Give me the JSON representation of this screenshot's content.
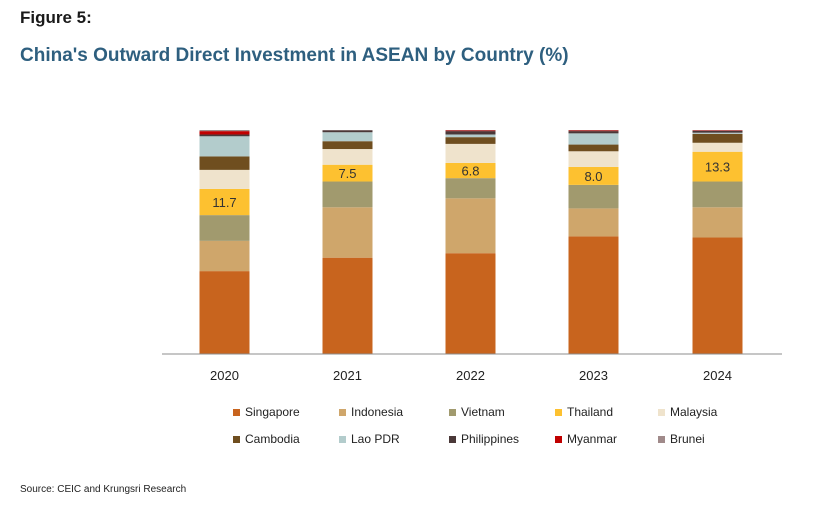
{
  "figure_label": "Figure 5:",
  "title": "China's Outward Direct Investment in ASEAN by Country (%)",
  "source": "Source: CEIC and Krungsri Research",
  "chart_data": {
    "type": "bar",
    "stacked": true,
    "categories": [
      "2020",
      "2021",
      "2022",
      "2023",
      "2024"
    ],
    "ylim": [
      0,
      100
    ],
    "grid": false,
    "legend_position": "bottom",
    "series": [
      {
        "name": "Singapore",
        "color": "#c8641e",
        "values": [
          37.0,
          43.0,
          45.0,
          52.5,
          52.0
        ]
      },
      {
        "name": "Indonesia",
        "color": "#cfa66b",
        "values": [
          13.5,
          22.5,
          24.5,
          12.5,
          13.5
        ]
      },
      {
        "name": "Vietnam",
        "color": "#a19a6e",
        "values": [
          11.5,
          11.5,
          9.0,
          10.5,
          11.5
        ]
      },
      {
        "name": "Thailand",
        "color": "#fdc130",
        "values": [
          11.7,
          7.5,
          6.8,
          8.0,
          13.3
        ]
      },
      {
        "name": "Malaysia",
        "color": "#efe3cc",
        "values": [
          8.5,
          7.0,
          8.5,
          7.0,
          4.0
        ]
      },
      {
        "name": "Cambodia",
        "color": "#6f4e1f",
        "values": [
          6.0,
          3.5,
          3.0,
          3.0,
          4.0
        ]
      },
      {
        "name": "Lao PDR",
        "color": "#b3cccc",
        "values": [
          9.0,
          4.0,
          1.2,
          5.0,
          0.5
        ]
      },
      {
        "name": "Philippines",
        "color": "#4a3838",
        "values": [
          0.8,
          0.8,
          1.5,
          1.0,
          0.8
        ]
      },
      {
        "name": "Myanmar",
        "color": "#c00000",
        "values": [
          1.5,
          0.0,
          0.3,
          0.3,
          0.2
        ]
      },
      {
        "name": "Brunei",
        "color": "#a08a8a",
        "values": [
          0.5,
          0.2,
          0.2,
          0.2,
          0.2
        ]
      }
    ],
    "data_labels": {
      "series": "Thailand",
      "values": [
        "11.7",
        "7.5",
        "6.8",
        "8.0",
        "13.3"
      ]
    }
  }
}
